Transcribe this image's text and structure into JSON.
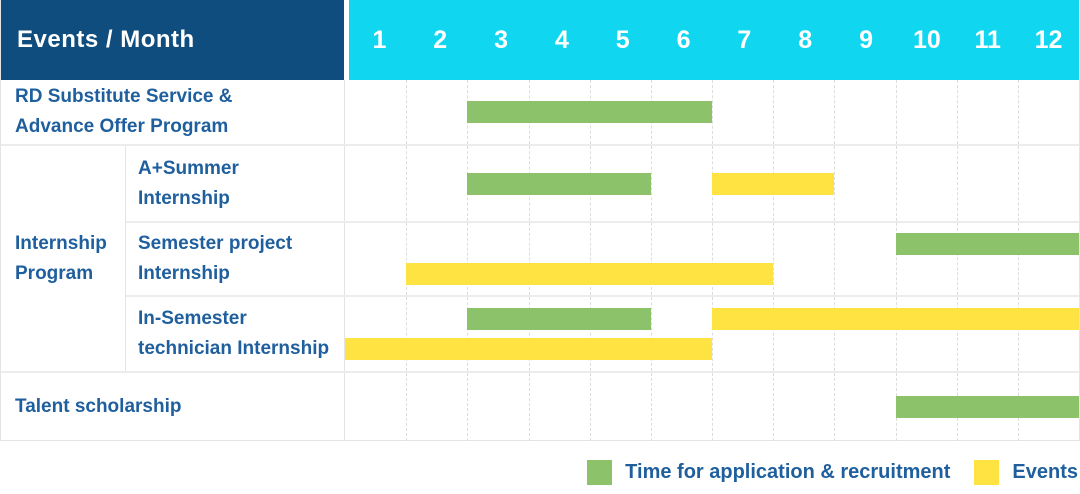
{
  "header": {
    "corner_label": "Events / Month"
  },
  "group": {
    "label": "Internship\nProgram"
  },
  "colors": {
    "header_bg": "#0e4d7d",
    "month_strip_bg": "#10d6ef",
    "application_green": "#8cc269",
    "event_yellow": "#ffe342",
    "label_blue": "#1f5f9d",
    "grid_line": "#dcdcdc"
  },
  "chart_data": {
    "type": "gantt",
    "title": "Events / Month",
    "x_axis": {
      "label": "Month",
      "ticks": [
        "1",
        "2",
        "3",
        "4",
        "5",
        "6",
        "7",
        "8",
        "9",
        "10",
        "11",
        "12"
      ],
      "range": [
        1,
        12
      ]
    },
    "legend": {
      "application": "Time for application & recruitment",
      "event": "Events",
      "position": "bottom-right"
    },
    "rows": [
      {
        "group": "",
        "label": "RD Substitute Service &\nAdvance Offer Program",
        "lanes": 1,
        "bars": [
          {
            "type": "application",
            "start": 3,
            "end": 6,
            "lane": 0
          }
        ]
      },
      {
        "group": "Internship Program",
        "label": "A+Summer\nInternship",
        "lanes": 1,
        "bars": [
          {
            "type": "application",
            "start": 3,
            "end": 5,
            "lane": 0
          },
          {
            "type": "event",
            "start": 7,
            "end": 8,
            "lane": 0
          }
        ]
      },
      {
        "group": "Internship Program",
        "label": "Semester project\nInternship",
        "lanes": 2,
        "bars": [
          {
            "type": "application",
            "start": 10,
            "end": 12,
            "lane": 0
          },
          {
            "type": "event",
            "start": 2,
            "end": 7,
            "lane": 1
          }
        ]
      },
      {
        "group": "Internship Program",
        "label": "In-Semester\ntechnician Internship",
        "lanes": 2,
        "bars": [
          {
            "type": "application",
            "start": 3,
            "end": 5,
            "lane": 0
          },
          {
            "type": "event",
            "start": 7,
            "end": 12,
            "lane": 0
          },
          {
            "type": "event",
            "start": 1,
            "end": 6,
            "lane": 1
          }
        ]
      },
      {
        "group": "",
        "label": "Talent scholarship",
        "lanes": 1,
        "bars": [
          {
            "type": "application",
            "start": 10,
            "end": 12,
            "lane": 0
          }
        ]
      }
    ]
  }
}
